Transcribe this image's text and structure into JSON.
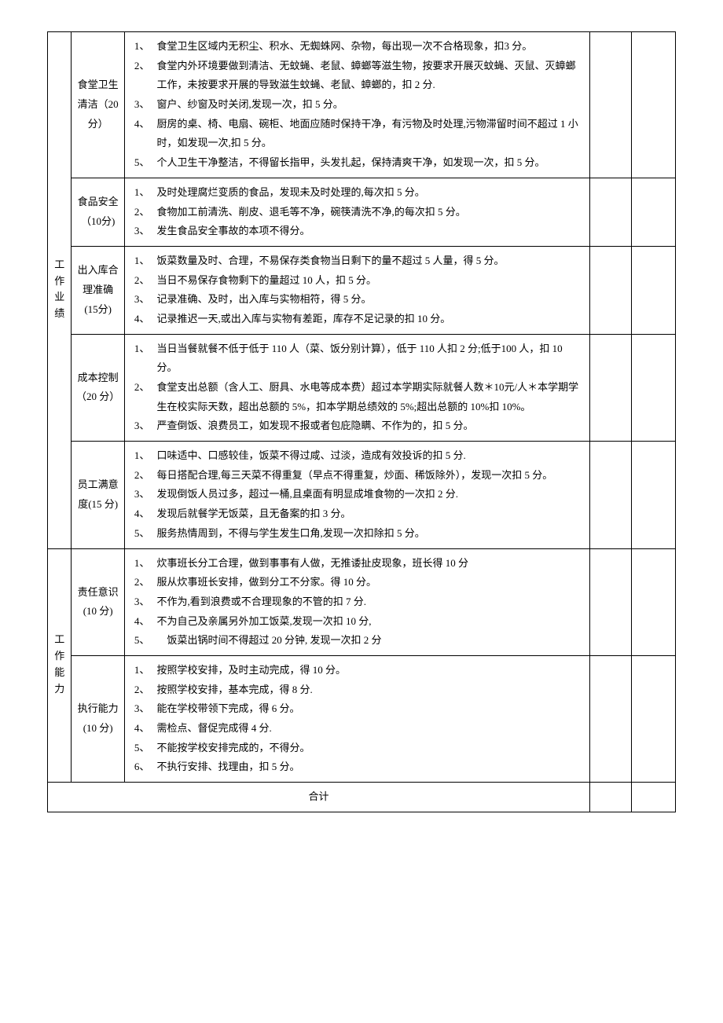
{
  "categories": [
    {
      "name": "工作业绩",
      "subs": [
        {
          "title": "食堂卫生清洁（20 分）",
          "items": [
            {
              "n": "1、",
              "t": "食堂卫生区域内无积尘、积水、无蜘蛛网、杂物，每出现一次不合格现象，扣3 分。"
            },
            {
              "n": "2、",
              "t": "食堂内外环境要做到清洁、无蚊蝇、老鼠、蟑螂等滋生物，按要求开展灭蚊蝇、灭鼠、灭蟑螂工作，未按要求开展的导致滋生蚊蝇、老鼠、蟑螂的，扣 2 分."
            },
            {
              "n": "3、",
              "t": "窗户、纱窗及时关闭,发现一次，扣 5 分。"
            },
            {
              "n": "4、",
              "t": "厨房的桌、椅、电扇、碗柜、地面应随时保持干净，有污物及时处理,污物滞留时间不超过 1 小时，如发现一次,扣 5 分。"
            },
            {
              "n": "5、",
              "t": "个人卫生干净整洁，不得留长指甲，头发扎起，保持清爽干净，如发现一次，扣 5 分。"
            }
          ]
        },
        {
          "title": "食品安全（10分)",
          "items": [
            {
              "n": "1、",
              "t": "及时处理腐烂变质的食品，发现未及时处理的,每次扣 5 分。"
            },
            {
              "n": "2、",
              "t": "食物加工前清洗、削皮、退毛等不净，碗筷清洗不净,的每次扣 5 分。"
            },
            {
              "n": "3、",
              "t": "发生食品安全事故的本项不得分。"
            }
          ]
        },
        {
          "title": "出入库合理准确 (15分)",
          "items": [
            {
              "n": "1、",
              "t": "饭菜数量及时、合理，不易保存类食物当日剩下的量不超过 5 人量，得 5 分。"
            },
            {
              "n": "2、",
              "t": "当日不易保存食物剩下的量超过 10 人，扣 5 分。"
            },
            {
              "n": "3、",
              "t": "记录准确、及时，出入库与实物相符，得 5 分。"
            },
            {
              "n": "4、",
              "t": "记录推迟一天,或出入库与实物有差距，库存不足记录的扣 10 分。"
            }
          ]
        },
        {
          "title": "成本控制（20 分）",
          "items": [
            {
              "n": "1、",
              "t": "当日当餐就餐不低于低于 110 人（菜、饭分别计算），低于 110 人扣 2 分;低于100 人，扣 10 分。"
            },
            {
              "n": "2、",
              "t": "食堂支出总额（含人工、厨具、水电等成本费）超过本学期实际就餐人数＊10元/人＊本学期学生在校实际天数，超出总额的 5%，扣本学期总绩效的 5%;超出总额的 10%扣 10%。"
            },
            {
              "n": "3、",
              "t": "严查倒饭、浪费员工，如发现不报或者包庇隐瞒、不作为的，扣 5 分。"
            }
          ]
        },
        {
          "title": "员工满意度(15 分)",
          "items": [
            {
              "n": "1、",
              "t": "口味适中、口感较佳，饭菜不得过咸、过淡，造成有效投诉的扣 5 分."
            },
            {
              "n": "2、",
              "t": "每日搭配合理,每三天菜不得重复（早点不得重复，炒面、稀饭除外），发现一次扣 5 分。"
            },
            {
              "n": "3、",
              "t": "发现倒饭人员过多，超过一桶,且桌面有明显成堆食物的一次扣 2 分."
            },
            {
              "n": "4、",
              "t": "发现后就餐学无饭菜，且无备案的扣 3 分。"
            },
            {
              "n": "5、",
              "t": "服务热情周到，不得与学生发生口角,发现一次扣除扣 5 分。"
            }
          ]
        }
      ]
    },
    {
      "name": "工作能力",
      "subs": [
        {
          "title": "责任意识(10 分)",
          "items": [
            {
              "n": "1、",
              "t": "炊事班长分工合理，做到事事有人做，无推诿扯皮现象，班长得 10 分"
            },
            {
              "n": "2、",
              "t": "服从炊事班长安排，做到分工不分家。得 10 分。"
            },
            {
              "n": "3、",
              "t": "不作为,看到浪费或不合理现象的不管的扣 7 分."
            },
            {
              "n": "4、",
              "t": "不为自己及亲属另外加工饭菜,发现一次扣 10 分,"
            },
            {
              "n": "5、",
              "t": "　饭菜出锅时间不得超过 20 分钟, 发现一次扣 2 分"
            }
          ]
        },
        {
          "title": "执行能力(10 分)",
          "items": [
            {
              "n": "1、",
              "t": "按照学校安排，及时主动完成，得 10 分。"
            },
            {
              "n": "2、",
              "t": "按照学校安排，基本完成，得 8 分."
            },
            {
              "n": "3、",
              "t": "能在学校带领下完成，得 6 分。"
            },
            {
              "n": "4、",
              "t": "需检点、督促完成得 4 分."
            },
            {
              "n": "5、",
              "t": "不能按学校安排完成的，不得分。"
            },
            {
              "n": "6、",
              "t": "不执行安排、找理由，扣 5 分。"
            }
          ]
        }
      ]
    }
  ],
  "total_label": "合计"
}
